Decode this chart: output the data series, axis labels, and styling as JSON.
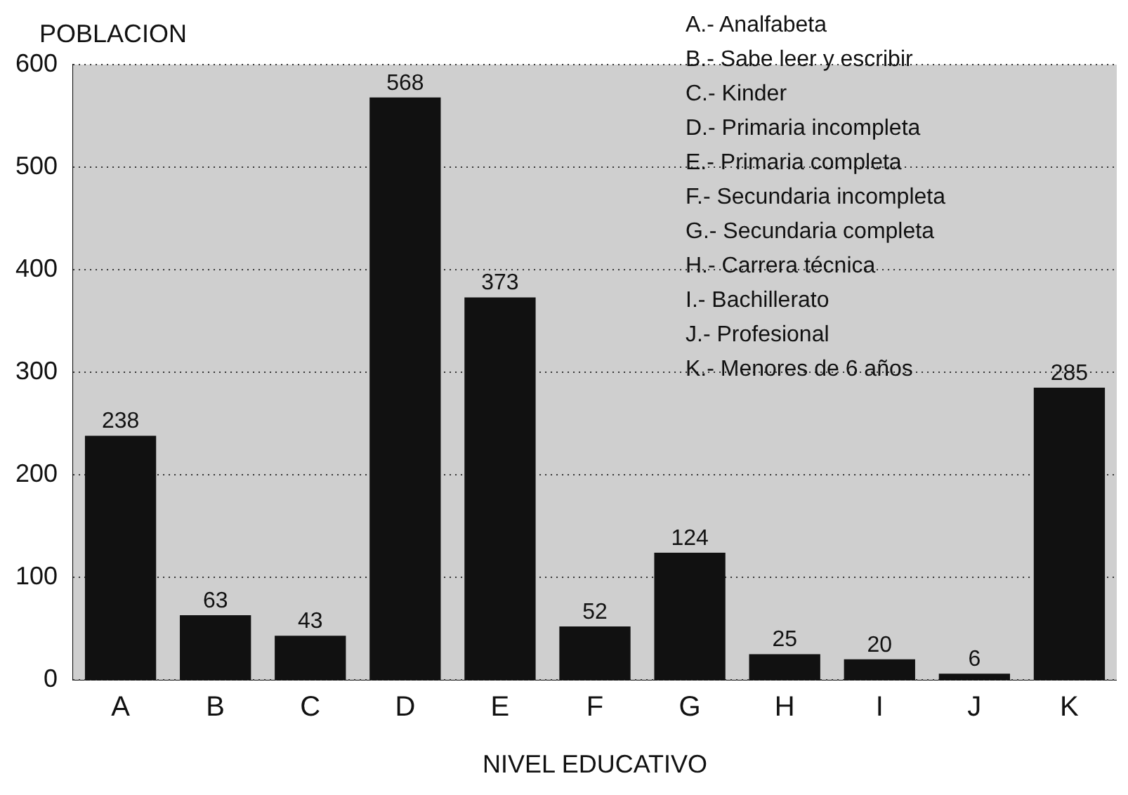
{
  "chart_data": {
    "type": "bar",
    "xlabel": "NIVEL EDUCATIVO",
    "ylabel": "POBLACION",
    "categories": [
      "A",
      "B",
      "C",
      "D",
      "E",
      "F",
      "G",
      "H",
      "I",
      "J",
      "K"
    ],
    "values": [
      238,
      63,
      43,
      568,
      373,
      52,
      124,
      25,
      20,
      6,
      285
    ],
    "color": "#111111",
    "ylim": [
      0,
      600
    ],
    "yticks": [
      0,
      100,
      200,
      300,
      400,
      500,
      600
    ],
    "grid": "y",
    "data_labels": true,
    "legend": false,
    "annotations": [
      "A.- Analfabeta",
      "B.- Sabe leer y escribir",
      "C.- Kinder",
      "D.- Primaria incompleta",
      "E.- Primaria completa",
      "F.- Secundaria incompleta",
      "G.- Secundaria completa",
      "H.- Carrera técnica",
      "I.- Bachillerato",
      "J.- Profesional",
      "K.- Menores de 6 años"
    ]
  }
}
